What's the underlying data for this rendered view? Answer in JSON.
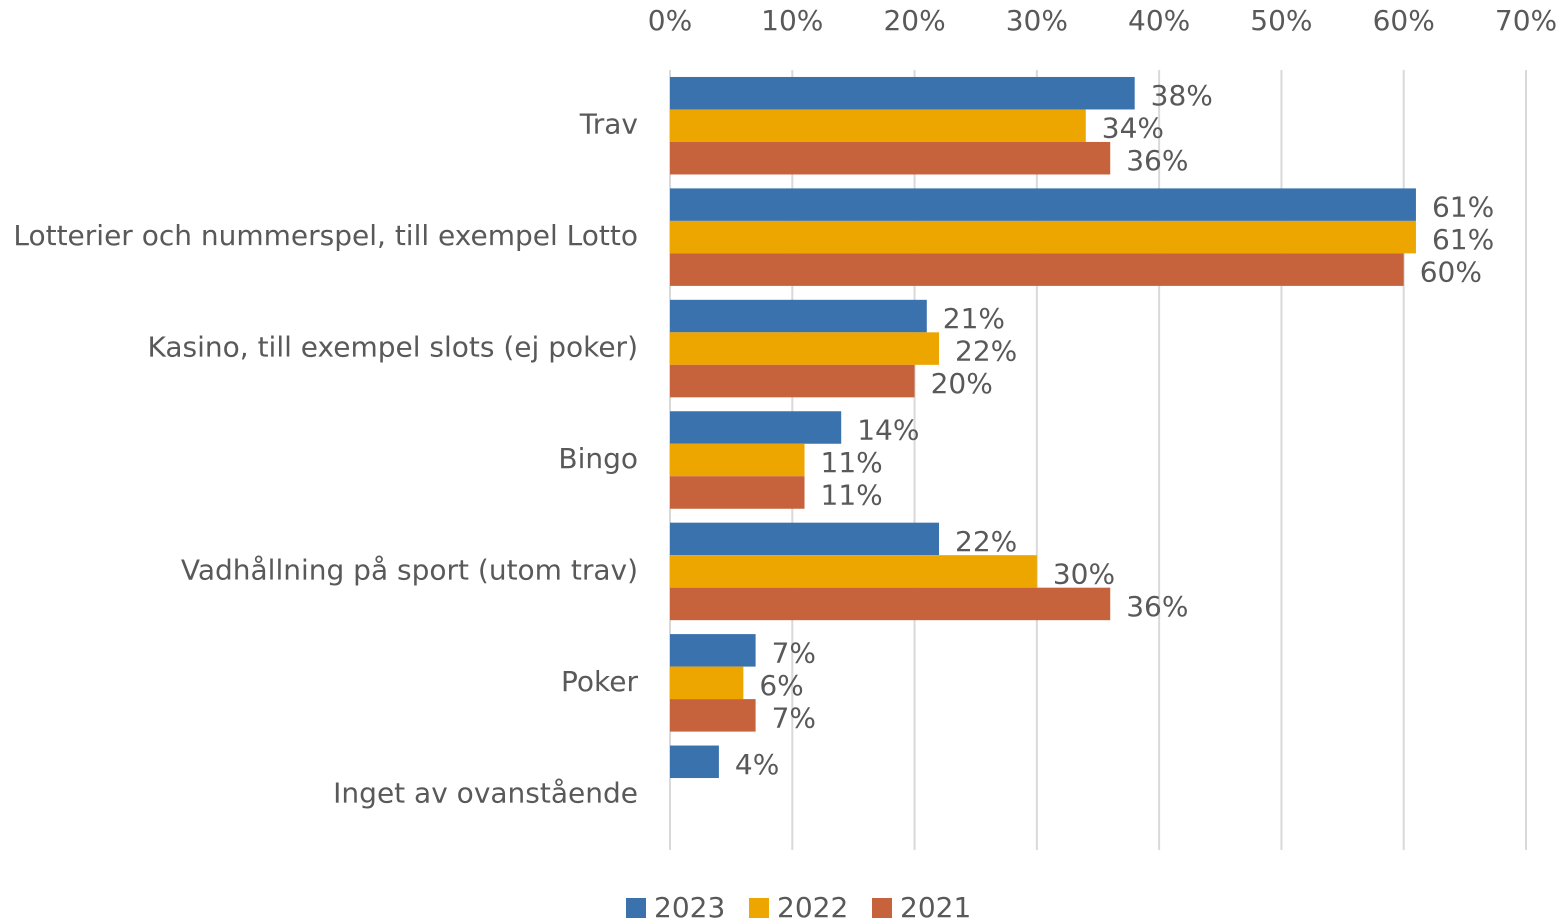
{
  "chart_data": {
    "type": "hbar",
    "categories": [
      "Trav",
      "Lotterier och nummerspel, till exempel Lotto",
      "Kasino, till exempel slots (ej poker)",
      "Bingo",
      "Vadhållning på sport (utom trav)",
      "Poker",
      "Inget av ovanstående"
    ],
    "series": [
      {
        "name": "2023",
        "color": "#3a72ae",
        "values": [
          38,
          61,
          21,
          14,
          22,
          7,
          4
        ],
        "value_labels": [
          "38%",
          "61%",
          "21%",
          "14%",
          "22%",
          "7%",
          "4%"
        ]
      },
      {
        "name": "2022",
        "color": "#eda500",
        "values": [
          34,
          61,
          22,
          11,
          30,
          6,
          null
        ],
        "value_labels": [
          "34%",
          "61%",
          "22%",
          "11%",
          "30%",
          "6%",
          null
        ]
      },
      {
        "name": "2021",
        "color": "#c6623c",
        "values": [
          36,
          60,
          20,
          11,
          36,
          7,
          null
        ],
        "value_labels": [
          "36%",
          "60%",
          "20%",
          "11%",
          "36%",
          "7%",
          null
        ]
      }
    ],
    "xlim": [
      0,
      70
    ],
    "xticks": [
      {
        "value": 0,
        "label": "0%"
      },
      {
        "value": 10,
        "label": "10%"
      },
      {
        "value": 20,
        "label": "20%"
      },
      {
        "value": 30,
        "label": "30%"
      },
      {
        "value": 40,
        "label": "40%"
      },
      {
        "value": 50,
        "label": "50%"
      },
      {
        "value": 60,
        "label": "60%"
      },
      {
        "value": 70,
        "label": "70%"
      }
    ],
    "grid": true,
    "legend": "bottom"
  }
}
